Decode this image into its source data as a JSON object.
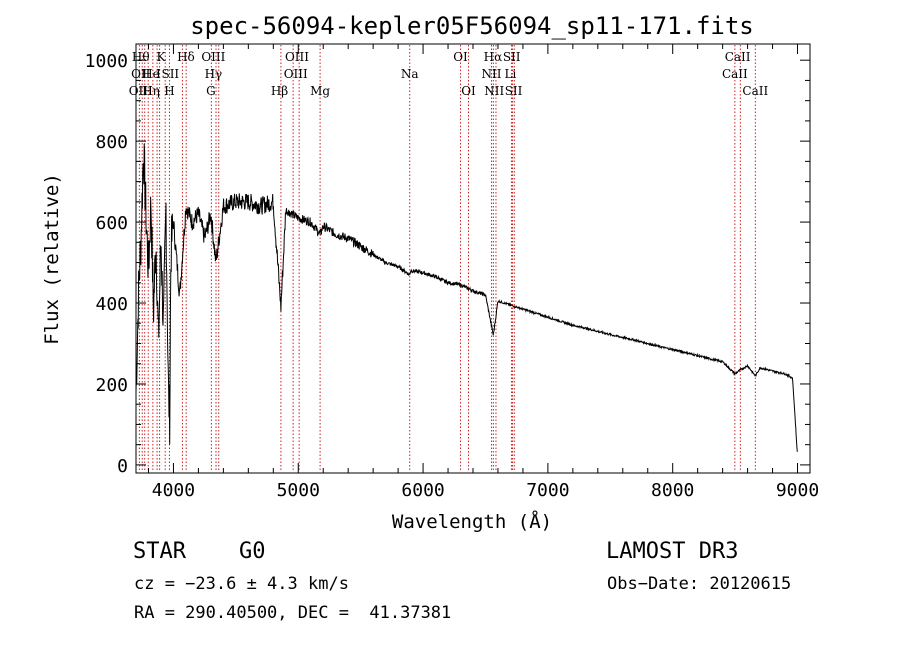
{
  "chart_data": {
    "type": "line",
    "title": "spec-56094-kepler05F56094_sp11-171.fits",
    "xlabel": "Wavelength (Å)",
    "ylabel": "Flux (relative)",
    "xlim": [
      3700,
      9100
    ],
    "ylim": [
      -20,
      1040
    ],
    "x_ticks": [
      4000,
      5000,
      6000,
      7000,
      8000,
      9000
    ],
    "y_ticks": [
      0,
      200,
      400,
      600,
      800,
      1000
    ],
    "grid": false,
    "series": [
      {
        "name": "spectrum",
        "x": [
          3700,
          3720,
          3740,
          3760,
          3780,
          3800,
          3820,
          3840,
          3860,
          3880,
          3900,
          3920,
          3940,
          3960,
          3970,
          3980,
          4000,
          4050,
          4100,
          4150,
          4200,
          4250,
          4300,
          4340,
          4400,
          4500,
          4600,
          4700,
          4800,
          4861,
          4900,
          5000,
          5100,
          5175,
          5200,
          5300,
          5400,
          5500,
          5600,
          5700,
          5800,
          5893,
          5900,
          6000,
          6100,
          6200,
          6300,
          6400,
          6500,
          6563,
          6600,
          6700,
          6800,
          6900,
          7000,
          7100,
          7200,
          7300,
          7400,
          7500,
          7600,
          7700,
          7800,
          7900,
          8000,
          8100,
          8200,
          8300,
          8400,
          8498,
          8542,
          8600,
          8662,
          8700,
          8800,
          8900,
          8960,
          8980,
          9000
        ],
        "y": [
          180,
          420,
          560,
          780,
          620,
          480,
          650,
          380,
          560,
          300,
          560,
          330,
          640,
          170,
          120,
          530,
          600,
          420,
          640,
          600,
          620,
          560,
          620,
          500,
          640,
          650,
          650,
          640,
          650,
          390,
          630,
          610,
          600,
          570,
          590,
          570,
          560,
          540,
          520,
          500,
          490,
          470,
          480,
          475,
          465,
          450,
          445,
          430,
          420,
          320,
          405,
          395,
          385,
          375,
          365,
          355,
          345,
          338,
          330,
          322,
          315,
          308,
          300,
          292,
          285,
          278,
          270,
          262,
          255,
          225,
          235,
          245,
          220,
          240,
          232,
          225,
          215,
          120,
          20
        ]
      }
    ],
    "line_marks": [
      {
        "wave": 3727,
        "name": "OII"
      },
      {
        "wave": 3750,
        "name": "OIII"
      },
      {
        "wave": 3770,
        "name": "Hθ"
      },
      {
        "wave": 3798,
        "name": "Hη"
      },
      {
        "wave": 3835,
        "name": "Hζ"
      },
      {
        "wave": 3869,
        "name": "NeIII"
      },
      {
        "wave": 3889,
        "name": "HeI"
      },
      {
        "wave": 3934,
        "name": "K"
      },
      {
        "wave": 3968,
        "name": "H"
      },
      {
        "wave": 4072,
        "name": "SII"
      },
      {
        "wave": 4102,
        "name": "Hδ"
      },
      {
        "wave": 4304,
        "name": "G"
      },
      {
        "wave": 4341,
        "name": "Hγ"
      },
      {
        "wave": 4363,
        "name": "OIII"
      },
      {
        "wave": 4861,
        "name": "Hβ"
      },
      {
        "wave": 4959,
        "name": "OIII"
      },
      {
        "wave": 5007,
        "name": "OIII"
      },
      {
        "wave": 5175,
        "name": "Mg"
      },
      {
        "wave": 5893,
        "name": "Na"
      },
      {
        "wave": 6300,
        "name": "OI"
      },
      {
        "wave": 6364,
        "name": "OI"
      },
      {
        "wave": 6548,
        "name": "NII"
      },
      {
        "wave": 6563,
        "name": "Hα"
      },
      {
        "wave": 6584,
        "name": "NII"
      },
      {
        "wave": 6708,
        "name": "Li"
      },
      {
        "wave": 6717,
        "name": "SII"
      },
      {
        "wave": 6731,
        "name": "SII"
      },
      {
        "wave": 8498,
        "name": "CaII"
      },
      {
        "wave": 8542,
        "name": "CaII"
      },
      {
        "wave": 8662,
        "name": "CaII"
      }
    ],
    "line_labels": [
      {
        "wave": 3738,
        "row": 0,
        "text": "Hθ"
      },
      {
        "wave": 3738,
        "row": 1,
        "text": "OII"
      },
      {
        "wave": 3738,
        "row": 2,
        "text": "OIII"
      },
      {
        "wave": 3820,
        "row": 1,
        "text": "He"
      },
      {
        "wave": 3820,
        "row": 2,
        "text": "Hη"
      },
      {
        "wave": 3900,
        "row": 0,
        "text": "K"
      },
      {
        "wave": 3880,
        "row": 1,
        "text": "I"
      },
      {
        "wave": 3968,
        "row": 2,
        "text": "H"
      },
      {
        "wave": 3975,
        "row": 1,
        "text": "SII"
      },
      {
        "wave": 4100,
        "row": 0,
        "text": "Hδ"
      },
      {
        "wave": 4320,
        "row": 0,
        "text": "OIII"
      },
      {
        "wave": 4320,
        "row": 1,
        "text": "Hγ"
      },
      {
        "wave": 4300,
        "row": 2,
        "text": "G"
      },
      {
        "wave": 4850,
        "row": 2,
        "text": "Hβ"
      },
      {
        "wave": 4990,
        "row": 0,
        "text": "OIII"
      },
      {
        "wave": 4980,
        "row": 1,
        "text": "OIII"
      },
      {
        "wave": 5175,
        "row": 2,
        "text": "Mg"
      },
      {
        "wave": 5893,
        "row": 1,
        "text": "Na"
      },
      {
        "wave": 6300,
        "row": 0,
        "text": "OI"
      },
      {
        "wave": 6364,
        "row": 2,
        "text": "OI"
      },
      {
        "wave": 6560,
        "row": 0,
        "text": "Hα"
      },
      {
        "wave": 6548,
        "row": 1,
        "text": "NII"
      },
      {
        "wave": 6570,
        "row": 2,
        "text": "NII"
      },
      {
        "wave": 6710,
        "row": 0,
        "text": "SII"
      },
      {
        "wave": 6700,
        "row": 1,
        "text": "Li"
      },
      {
        "wave": 6725,
        "row": 2,
        "text": "SII"
      },
      {
        "wave": 8520,
        "row": 0,
        "text": "CaII"
      },
      {
        "wave": 8498,
        "row": 1,
        "text": "CaII"
      },
      {
        "wave": 8662,
        "row": 2,
        "text": "CaII"
      }
    ]
  },
  "footer": {
    "class_label": "STAR",
    "subclass": "G0",
    "survey": "LAMOST DR3",
    "cz": "cz = −23.6 ± 4.3 km/s",
    "obs_date": "Obs−Date: 20120615",
    "coords": "RA = 290.40500, DEC =  41.37381"
  }
}
